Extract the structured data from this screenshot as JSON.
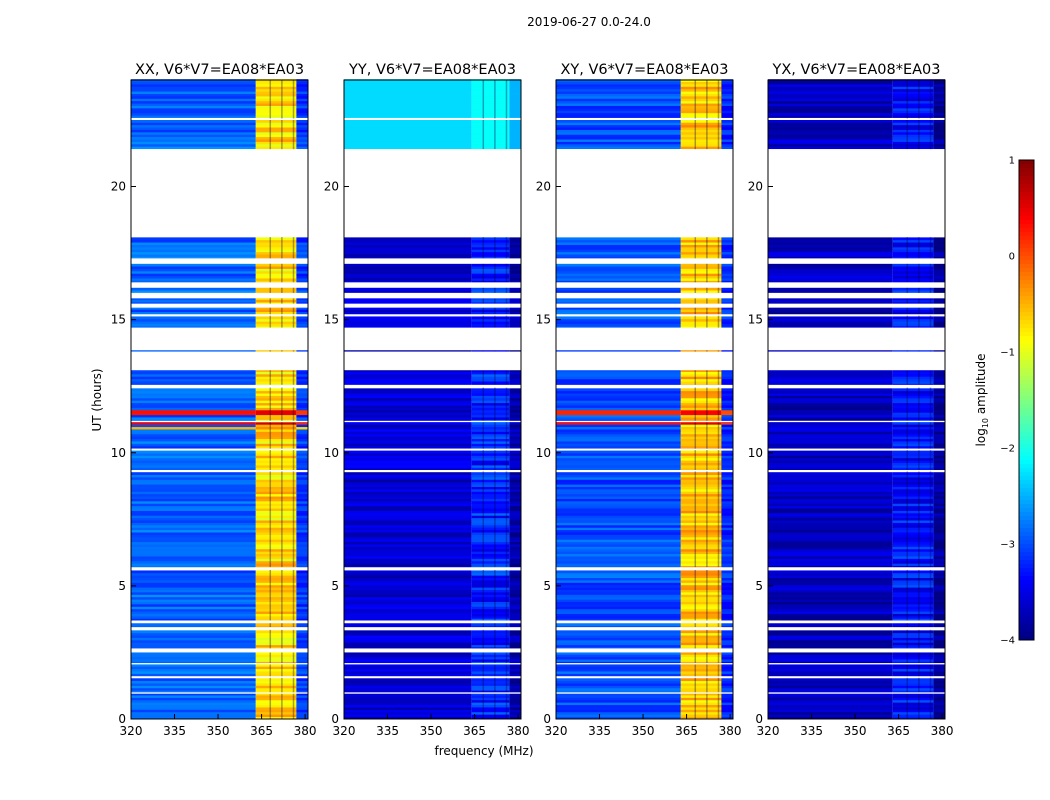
{
  "figure": {
    "suptitle": "2019-06-27 0.0-24.0",
    "xlabel": "frequency (MHz)",
    "ylabel": "UT (hours)"
  },
  "chart_data": {
    "type": "heatmap",
    "title": "2019-06-27 0.0-24.0",
    "xlabel": "frequency (MHz)",
    "ylabel": "UT (hours)",
    "xlim": [
      320,
      381
    ],
    "ylim": [
      0,
      24
    ],
    "xticks": [
      "320",
      "335",
      "350",
      "365",
      "380"
    ],
    "xtick_values": [
      320,
      335,
      350,
      365,
      380
    ],
    "yticks": [
      "0",
      "5",
      "10",
      "15",
      "20"
    ],
    "ytick_values": [
      0,
      5,
      10,
      15,
      20
    ],
    "colorscale": "jet",
    "colorbar": {
      "label": "log10 amplitude",
      "label_main": "log",
      "label_sub": "10",
      "label_tail": " amplitude",
      "range": [
        -4,
        1
      ],
      "ticks": [
        "1",
        "0",
        "−1",
        "−2",
        "−3",
        "−4"
      ],
      "tick_values": [
        1,
        0,
        -1,
        -2,
        -3,
        -4
      ]
    },
    "flagged_gaps_ut": [
      [
        0.95,
        1.0
      ],
      [
        1.55,
        1.6
      ],
      [
        2.05,
        2.1
      ],
      [
        2.5,
        2.65
      ],
      [
        3.35,
        3.45
      ],
      [
        3.6,
        3.7
      ],
      [
        5.6,
        5.7
      ],
      [
        9.3,
        9.35
      ],
      [
        10.1,
        10.15
      ],
      [
        11.15,
        11.2
      ],
      [
        12.45,
        12.55
      ],
      [
        13.1,
        13.8
      ],
      [
        13.85,
        14.7
      ],
      [
        15.15,
        15.2
      ],
      [
        15.45,
        15.6
      ],
      [
        15.8,
        16.0
      ],
      [
        16.2,
        16.4
      ],
      [
        17.1,
        17.3
      ],
      [
        18.1,
        21.4
      ],
      [
        22.5,
        22.55
      ]
    ],
    "panels": [
      {
        "name": "XX",
        "title": "XX, V6*V7=EA08*EA03",
        "rfi_band_mhz": [
          363,
          377
        ],
        "baseline_log_amp": -2.9,
        "rfi_log_amp": -0.7,
        "bright_rows_ut": [
          [
            11.05,
            11.2,
            0.4
          ],
          [
            11.4,
            11.6,
            0.3
          ],
          [
            10.9,
            11.0,
            -0.5
          ]
        ]
      },
      {
        "name": "YY",
        "title": "YY, V6*V7=EA08*EA03",
        "rfi_band_mhz": [
          364,
          377
        ],
        "baseline_log_amp": -3.6,
        "rfi_log_amp": -3.2,
        "bright_rows_ut": [
          [
            21.4,
            24.0,
            -2.3
          ]
        ]
      },
      {
        "name": "XY",
        "title": "XY, V6*V7=EA08*EA03",
        "rfi_band_mhz": [
          363,
          377
        ],
        "baseline_log_amp": -3.0,
        "rfi_log_amp": -0.6,
        "bright_rows_ut": [
          [
            11.05,
            11.2,
            0.3
          ],
          [
            11.4,
            11.6,
            0.2
          ]
        ]
      },
      {
        "name": "YX",
        "title": "YX, V6*V7=EA08*EA03",
        "rfi_band_mhz": [
          363,
          377
        ],
        "baseline_log_amp": -3.7,
        "rfi_log_amp": -3.3,
        "bright_rows_ut": []
      }
    ]
  }
}
